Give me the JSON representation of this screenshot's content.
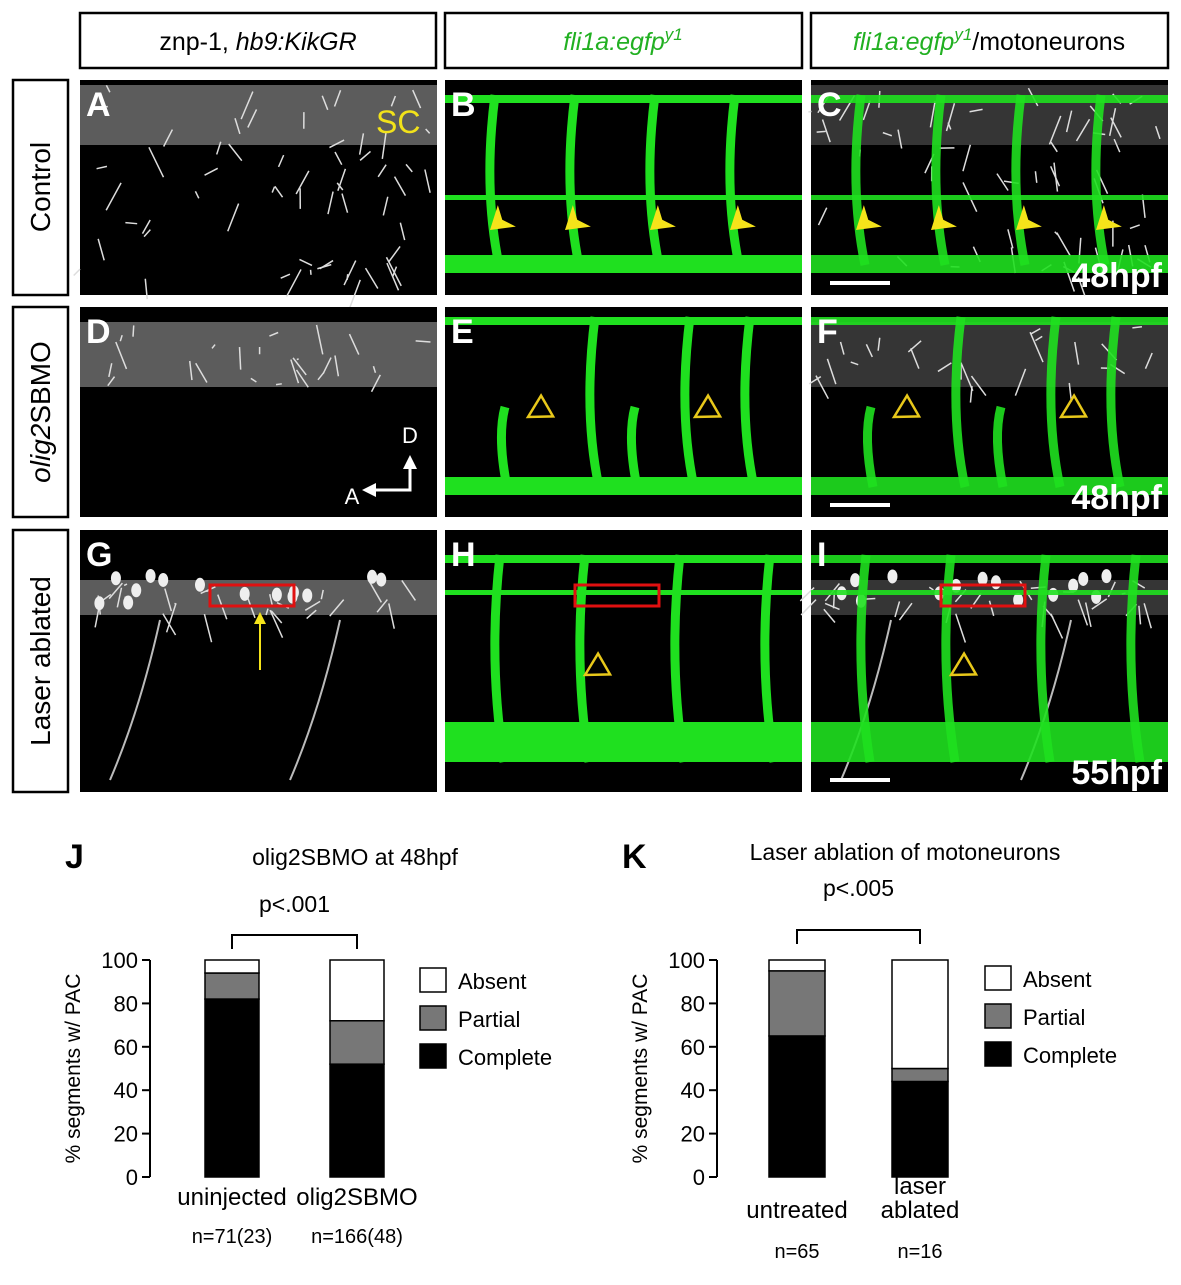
{
  "figure": {
    "column_headers": [
      [
        "znp-1, ",
        "hb9:KikGR"
      ],
      [
        "fli1a:egfp",
        "y1"
      ],
      [
        "fli1a:egfp",
        "y1",
        "/motoneurons"
      ]
    ],
    "row_labels": [
      [
        "Control"
      ],
      [
        "olig2",
        "SBMO"
      ],
      [
        "Laser ablated"
      ]
    ],
    "panel_letters": [
      "A",
      "B",
      "C",
      "D",
      "E",
      "F",
      "G",
      "H",
      "I"
    ],
    "spinal_cord_label": "SC",
    "time_labels": [
      "48hpf",
      "48hpf",
      "55hpf"
    ],
    "axis_labels": [
      "D",
      "A"
    ],
    "chart_letters": [
      "J",
      "K"
    ]
  },
  "chart_data": [
    {
      "type": "bar",
      "stacked": true,
      "title": "olig2SBMO at 48hpf",
      "ylabel": "% segments w/ PAC",
      "categories": [
        "uninjected",
        "olig2SBMO"
      ],
      "n_labels": [
        "n=71(23)",
        "n=166(48)"
      ],
      "p_value": "p<.001",
      "series": [
        {
          "name": "Complete",
          "color": "#000000",
          "values": [
            82,
            52
          ]
        },
        {
          "name": "Partial",
          "color": "#777777",
          "values": [
            12,
            20
          ]
        },
        {
          "name": "Absent",
          "color": "#ffffff",
          "values": [
            6,
            28
          ]
        }
      ],
      "ylim": [
        0,
        100
      ],
      "yticks": [
        0,
        20,
        40,
        60,
        80,
        100
      ],
      "legend": "right"
    },
    {
      "type": "bar",
      "stacked": true,
      "title": "Laser ablation of motoneurons",
      "ylabel": "% segments w/ PAC",
      "categories": [
        "untreated",
        "laser ablated"
      ],
      "n_labels": [
        "n=65",
        "n=16"
      ],
      "p_value": "p<.005",
      "series": [
        {
          "name": "Complete",
          "color": "#000000",
          "values": [
            65,
            44
          ]
        },
        {
          "name": "Partial",
          "color": "#777777",
          "values": [
            30,
            6
          ]
        },
        {
          "name": "Absent",
          "color": "#ffffff",
          "values": [
            5,
            50
          ]
        }
      ],
      "ylim": [
        0,
        100
      ],
      "yticks": [
        0,
        20,
        40,
        60,
        80,
        100
      ],
      "legend": "right"
    }
  ]
}
